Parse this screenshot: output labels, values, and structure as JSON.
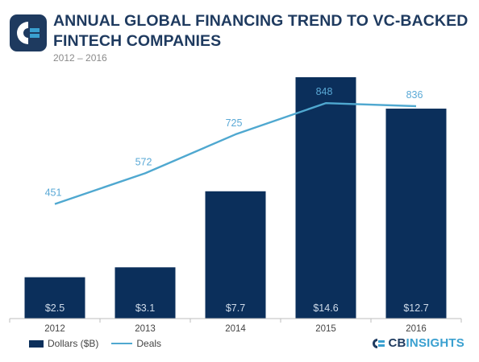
{
  "header": {
    "title": "ANNUAL GLOBAL FINANCING TREND TO VC-BACKED FINTECH COMPANIES",
    "subtitle": "2012 – 2016"
  },
  "brand": {
    "cb": "CB",
    "insights": "INSIGHTS"
  },
  "colors": {
    "bar": "#0b2f5b",
    "line": "#4fa8d0",
    "title": "#1e3a5f",
    "label": "#5aa9d6",
    "barLabel": "#d0dcea"
  },
  "chart_data": {
    "type": "bar",
    "categories": [
      "2012",
      "2013",
      "2014",
      "2015",
      "2016"
    ],
    "series": [
      {
        "name": "Dollars ($B)",
        "type": "bar",
        "values": [
          2.5,
          3.1,
          7.7,
          14.6,
          12.7
        ],
        "labels": [
          "$2.5",
          "$3.1",
          "$7.7",
          "$14.6",
          "$12.7"
        ]
      },
      {
        "name": "Deals",
        "type": "line",
        "values": [
          451,
          572,
          725,
          848,
          836
        ],
        "labels": [
          "451",
          "572",
          "725",
          "848",
          "836"
        ]
      }
    ],
    "title": "ANNUAL GLOBAL FINANCING TREND TO VC-BACKED FINTECH COMPANIES",
    "subtitle": "2012 – 2016",
    "legend": "bottom-left",
    "grid": false,
    "y_dollars_range": [
      0,
      14.6
    ],
    "y_deals_range": [
      0,
      950
    ]
  }
}
